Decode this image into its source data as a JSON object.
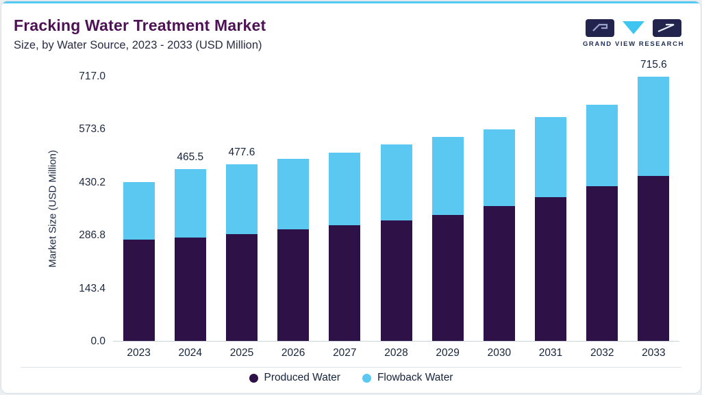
{
  "header": {
    "title": "Fracking Water Treatment Market",
    "subtitle": "Size, by Water Source, 2023 - 2033 (USD Million)"
  },
  "brand": {
    "name": "GRAND VIEW RESEARCH"
  },
  "colors": {
    "accent_line": "#55C9F2",
    "produced": "#2E1147",
    "flowback": "#5BC8F2",
    "title_text": "#4D1254"
  },
  "chart_data": {
    "type": "bar",
    "stacked": true,
    "title": "Fracking Water Treatment Market Size, by Water Source, 2023 - 2033 (USD Million)",
    "ylabel": "Market Size (USD Million)",
    "ylim": [
      0,
      717.0
    ],
    "ytick_labels": [
      "0.0",
      "143.4",
      "286.8",
      "430.2",
      "573.6",
      "717.0"
    ],
    "ytick_values": [
      0,
      143.4,
      286.8,
      430.2,
      573.6,
      717.0
    ],
    "categories": [
      "2023",
      "2024",
      "2025",
      "2026",
      "2027",
      "2028",
      "2029",
      "2030",
      "2031",
      "2032",
      "2033"
    ],
    "series": [
      {
        "name": "Produced Water",
        "color": "#2E1147",
        "values": [
          274,
          280,
          289,
          302,
          313,
          326,
          341,
          365,
          389,
          419,
          447
        ]
      },
      {
        "name": "Flowback Water",
        "color": "#5BC8F2",
        "values": [
          156.2,
          185.5,
          188.6,
          190,
          197,
          206,
          212,
          207,
          216,
          221,
          268.6
        ]
      }
    ],
    "totals": [
      430.2,
      465.5,
      477.6,
      492,
      510,
      532,
      553,
      572,
      605,
      640,
      715.6
    ],
    "bar_labels": [
      "",
      "465.5",
      "477.6",
      "",
      "",
      "",
      "",
      "",
      "",
      "",
      "715.6"
    ],
    "legend_position": "bottom",
    "grid": false
  }
}
